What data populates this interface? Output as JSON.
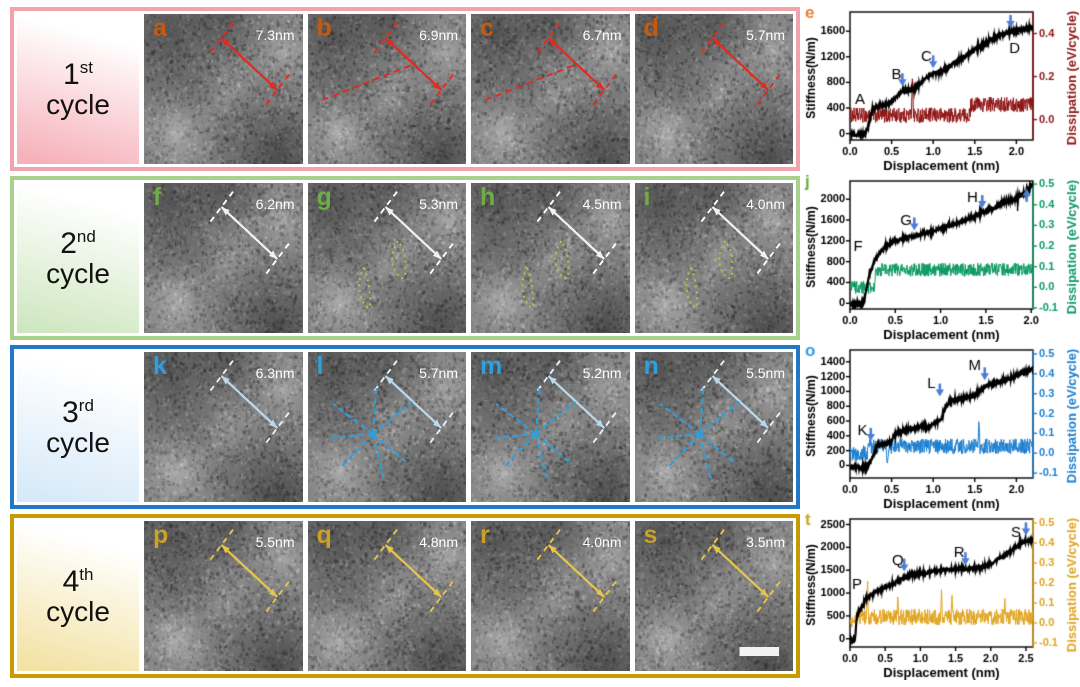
{
  "figure": {
    "rows": [
      {
        "ordinal": "1",
        "ordinal_suffix": "st",
        "label_word": "cycle",
        "border_color": "#f0a3aa",
        "label_bg": [
          "#ffffff",
          "#f6b1ba"
        ],
        "letter_color": "#c55a11",
        "arrow_color": "#e02b20",
        "dash_color": "#e02b20",
        "accent_color": "#e02b20",
        "measure_text_color": "#ffffff",
        "extra": "long-dash",
        "panels": [
          {
            "letter": "a",
            "measurement": "7.3nm"
          },
          {
            "letter": "b",
            "measurement": "6.9nm"
          },
          {
            "letter": "c",
            "measurement": "6.7nm"
          },
          {
            "letter": "d",
            "measurement": "5.7nm"
          }
        ]
      },
      {
        "ordinal": "2",
        "ordinal_suffix": "nd",
        "label_word": "cycle",
        "border_color": "#a9d18e",
        "label_bg": [
          "#ffffff",
          "#cfe7c0"
        ],
        "letter_color": "#70ad47",
        "arrow_color": "#f2f2f2",
        "dash_color": "#ffffff",
        "accent_color": "#a9c93f",
        "measure_text_color": "#ffffff",
        "extra": "green-dots",
        "panels": [
          {
            "letter": "f",
            "measurement": "6.2nm"
          },
          {
            "letter": "g",
            "measurement": "5.3nm"
          },
          {
            "letter": "h",
            "measurement": "4.5nm"
          },
          {
            "letter": "i",
            "measurement": "4.0nm"
          }
        ]
      },
      {
        "ordinal": "3",
        "ordinal_suffix": "rd",
        "label_word": "cycle",
        "border_color": "#2277c8",
        "label_bg": [
          "#ffffff",
          "#d6e9f8"
        ],
        "letter_color": "#2da0dd",
        "arrow_color": "#bcd9ec",
        "dash_color": "#e8f2f8",
        "accent_color": "#2da0dd",
        "measure_text_color": "#ffffff",
        "extra": "blue-rays",
        "panels": [
          {
            "letter": "k",
            "measurement": "6.3nm"
          },
          {
            "letter": "l",
            "measurement": "5.7nm"
          },
          {
            "letter": "m",
            "measurement": "5.2nm"
          },
          {
            "letter": "n",
            "measurement": "5.5nm"
          }
        ]
      },
      {
        "ordinal": "4",
        "ordinal_suffix": "th",
        "label_word": "cycle",
        "border_color": "#c79a02",
        "label_bg": [
          "#ffffff",
          "#f3e2a4"
        ],
        "letter_color": "#c9a227",
        "arrow_color": "#e6c54a",
        "dash_color": "#e6c54a",
        "accent_color": "#e6c54a",
        "measure_text_color": "#ffffff",
        "extra": "scalebar",
        "panels": [
          {
            "letter": "p",
            "measurement": "5.5nm"
          },
          {
            "letter": "q",
            "measurement": "4.8nm"
          },
          {
            "letter": "r",
            "measurement": "4.0nm"
          },
          {
            "letter": "s",
            "measurement": "3.5nm"
          }
        ]
      }
    ]
  },
  "chart_data": [
    {
      "id": "e",
      "letter": "e",
      "letter_color": "#ed7d31",
      "type": "line",
      "xlabel": "Displacement (nm)",
      "ylabel_left": "Stiffness(N/m)",
      "ylabel_right": "Dissipation (eV/cycle)",
      "x_ticks": [
        "0.0",
        "0.5",
        "1.0",
        "1.5",
        "2.0"
      ],
      "xlim": [
        0,
        2.2
      ],
      "left_ticks": [
        0,
        400,
        800,
        1200,
        1600
      ],
      "left_lim": [
        -100,
        1900
      ],
      "right_ticks": [
        "0.0",
        "0.2",
        "0.4"
      ],
      "right_lim": [
        -0.095,
        0.5
      ],
      "right_color": "#8f1414",
      "stiffness_color": "#000000",
      "annotation_arrow_color": "#4d7fd6",
      "stiffness": [
        [
          0,
          -10
        ],
        [
          0.18,
          -10
        ],
        [
          0.22,
          120
        ],
        [
          0.27,
          390
        ],
        [
          0.35,
          440
        ],
        [
          0.45,
          460
        ],
        [
          0.5,
          505
        ],
        [
          0.55,
          565
        ],
        [
          0.6,
          645
        ],
        [
          0.68,
          690
        ],
        [
          0.78,
          700
        ],
        [
          0.85,
          790
        ],
        [
          0.95,
          905
        ],
        [
          1.05,
          960
        ],
        [
          1.15,
          1005
        ],
        [
          1.25,
          1105
        ],
        [
          1.35,
          1185
        ],
        [
          1.45,
          1265
        ],
        [
          1.55,
          1355
        ],
        [
          1.65,
          1425
        ],
        [
          1.75,
          1505
        ],
        [
          1.85,
          1565
        ],
        [
          1.95,
          1595
        ],
        [
          2.05,
          1625
        ],
        [
          2.2,
          1665
        ]
      ],
      "dissipation_segments": [
        [
          0,
          1.45,
          0.02
        ],
        [
          1.45,
          2.2,
          0.07
        ]
      ],
      "dissipation_noise": 0.035,
      "dissipation_spikes": [
        [
          0.75,
          0.19
        ]
      ],
      "annotations": [
        {
          "label": "A",
          "x": 0.12,
          "y": 520
        },
        {
          "label": "B",
          "x": 0.56,
          "y": 920,
          "arrow": {
            "x": 0.63,
            "y": 740,
            "dir": "down"
          }
        },
        {
          "label": "C",
          "x": 0.92,
          "y": 1200,
          "arrow": {
            "x": 1.0,
            "y": 1020,
            "dir": "down"
          }
        },
        {
          "label": "D",
          "x": 1.98,
          "y": 1320,
          "arrow": {
            "x": 1.93,
            "y": 1650,
            "dir": "down"
          }
        }
      ]
    },
    {
      "id": "j",
      "letter": "j",
      "letter_color": "#70ad47",
      "type": "line",
      "xlabel": "Displacement (nm)",
      "ylabel_left": "Stiffness(N/m)",
      "ylabel_right": "Dissipation (eV/cycle)",
      "x_ticks": [
        "0.0",
        "0.5",
        "1.0",
        "1.5",
        "2.0"
      ],
      "xlim": [
        0,
        2.02
      ],
      "left_ticks": [
        0,
        400,
        800,
        1200,
        1600,
        2000
      ],
      "left_lim": [
        -110,
        2350
      ],
      "right_ticks": [
        "-0.1",
        "0.0",
        "0.1",
        "0.2",
        "0.3",
        "0.4",
        "0.5"
      ],
      "right_lim": [
        -0.105,
        0.515
      ],
      "right_color": "#0d9b63",
      "stiffness_color": "#000000",
      "annotation_arrow_color": "#4d7fd6",
      "stiffness": [
        [
          0,
          -15
        ],
        [
          0.13,
          -15
        ],
        [
          0.16,
          50
        ],
        [
          0.19,
          350
        ],
        [
          0.22,
          600
        ],
        [
          0.27,
          800
        ],
        [
          0.32,
          950
        ],
        [
          0.38,
          1080
        ],
        [
          0.45,
          1160
        ],
        [
          0.52,
          1215
        ],
        [
          0.62,
          1260
        ],
        [
          0.72,
          1300
        ],
        [
          0.82,
          1335
        ],
        [
          0.92,
          1390
        ],
        [
          1.02,
          1450
        ],
        [
          1.12,
          1505
        ],
        [
          1.22,
          1565
        ],
        [
          1.32,
          1625
        ],
        [
          1.42,
          1705
        ],
        [
          1.52,
          1785
        ],
        [
          1.62,
          1855
        ],
        [
          1.72,
          1950
        ],
        [
          1.82,
          2010
        ],
        [
          1.92,
          2110
        ],
        [
          2.02,
          2290
        ]
      ],
      "dissipation_segments": [
        [
          0,
          0.28,
          0.0
        ],
        [
          0.28,
          2.02,
          0.085
        ]
      ],
      "dissipation_noise": 0.032,
      "dissipation_spikes": [],
      "annotations": [
        {
          "label": "F",
          "x": 0.09,
          "y": 1080
        },
        {
          "label": "G",
          "x": 0.62,
          "y": 1580,
          "arrow": {
            "x": 0.71,
            "y": 1400,
            "dir": "down"
          }
        },
        {
          "label": "H",
          "x": 1.35,
          "y": 2020,
          "arrow": {
            "x": 1.46,
            "y": 1830,
            "dir": "down"
          }
        },
        {
          "label": "I",
          "x": 1.85,
          "y": 1860,
          "arrow": {
            "x": 1.95,
            "y": 2200,
            "dir": "up"
          }
        }
      ]
    },
    {
      "id": "o",
      "letter": "o",
      "letter_color": "#2da0dd",
      "type": "line",
      "xlabel": "Displacement (nm)",
      "ylabel_left": "Stiffness(N/m)",
      "ylabel_right": "Dissipation (eV/cycle)",
      "x_ticks": [
        "0.0",
        "0.5",
        "1.0",
        "1.5",
        "2.0"
      ],
      "xlim": [
        0,
        2.2
      ],
      "left_ticks": [
        0,
        200,
        400,
        600,
        800,
        1000,
        1200,
        1400
      ],
      "left_lim": [
        -170,
        1560
      ],
      "right_ticks": [
        "-0.1",
        "0.0",
        "0.1",
        "0.2",
        "0.3",
        "0.4",
        "0.5"
      ],
      "right_lim": [
        -0.125,
        0.52
      ],
      "right_color": "#1d7fd0",
      "stiffness_color": "#000000",
      "annotation_arrow_color": "#4d7fd6",
      "stiffness": [
        [
          0,
          -25
        ],
        [
          0.2,
          -25
        ],
        [
          0.24,
          30
        ],
        [
          0.28,
          140
        ],
        [
          0.33,
          270
        ],
        [
          0.4,
          295
        ],
        [
          0.48,
          305
        ],
        [
          0.53,
          390
        ],
        [
          0.58,
          450
        ],
        [
          0.68,
          475
        ],
        [
          0.78,
          500
        ],
        [
          0.88,
          530
        ],
        [
          0.93,
          515
        ],
        [
          0.98,
          545
        ],
        [
          1.05,
          590
        ],
        [
          1.1,
          640
        ],
        [
          1.15,
          790
        ],
        [
          1.22,
          880
        ],
        [
          1.32,
          900
        ],
        [
          1.42,
          925
        ],
        [
          1.5,
          950
        ],
        [
          1.56,
          1010
        ],
        [
          1.62,
          1060
        ],
        [
          1.68,
          1095
        ],
        [
          1.78,
          1125
        ],
        [
          1.88,
          1155
        ],
        [
          1.98,
          1205
        ],
        [
          2.08,
          1255
        ],
        [
          2.2,
          1305
        ]
      ],
      "dissipation_segments": [
        [
          0,
          0.22,
          0.0
        ],
        [
          0.22,
          2.2,
          0.035
        ]
      ],
      "dissipation_noise": 0.038,
      "dissipation_spikes": [
        [
          0.45,
          -0.07
        ],
        [
          1.55,
          0.16
        ]
      ],
      "annotations": [
        {
          "label": "K",
          "x": 0.15,
          "y": 470,
          "arrow": {
            "x": 0.25,
            "y": 330,
            "dir": "down"
          }
        },
        {
          "label": "L",
          "x": 0.98,
          "y": 1100,
          "arrow": {
            "x": 1.08,
            "y": 930,
            "dir": "down"
          }
        },
        {
          "label": "M",
          "x": 1.5,
          "y": 1340,
          "arrow": {
            "x": 1.62,
            "y": 1150,
            "dir": "down"
          }
        }
      ]
    },
    {
      "id": "t",
      "letter": "t",
      "letter_color": "#c9a227",
      "type": "line",
      "xlabel": "Displacement (nm)",
      "ylabel_left": "Stiffness(N/m)",
      "ylabel_right": "Dissipation (eV/cycle)",
      "x_ticks": [
        "0.0",
        "0.5",
        "1.0",
        "1.5",
        "2.0",
        "2.5"
      ],
      "xlim": [
        0,
        2.6
      ],
      "left_ticks": [
        0,
        500,
        1000,
        1500,
        2000,
        2500
      ],
      "left_lim": [
        -180,
        2620
      ],
      "right_ticks": [
        "-0.1",
        "0.0",
        "0.1",
        "0.2",
        "0.3",
        "0.4",
        "0.5"
      ],
      "right_lim": [
        -0.12,
        0.52
      ],
      "right_color": "#e2a51f",
      "stiffness_color": "#000000",
      "annotation_arrow_color": "#4d7fd6",
      "stiffness": [
        [
          0,
          -30
        ],
        [
          0.07,
          -30
        ],
        [
          0.1,
          520
        ],
        [
          0.13,
          600
        ],
        [
          0.17,
          700
        ],
        [
          0.22,
          870
        ],
        [
          0.27,
          930
        ],
        [
          0.35,
          1010
        ],
        [
          0.45,
          1090
        ],
        [
          0.55,
          1160
        ],
        [
          0.65,
          1240
        ],
        [
          0.75,
          1330
        ],
        [
          0.85,
          1380
        ],
        [
          0.95,
          1415
        ],
        [
          1.05,
          1440
        ],
        [
          1.15,
          1465
        ],
        [
          1.25,
          1495
        ],
        [
          1.35,
          1505
        ],
        [
          1.45,
          1515
        ],
        [
          1.55,
          1525
        ],
        [
          1.65,
          1535
        ],
        [
          1.75,
          1545
        ],
        [
          1.85,
          1565
        ],
        [
          1.95,
          1605
        ],
        [
          2.05,
          1680
        ],
        [
          2.15,
          1790
        ],
        [
          2.25,
          1890
        ],
        [
          2.35,
          2000
        ],
        [
          2.45,
          2110
        ],
        [
          2.58,
          2180
        ]
      ],
      "dissipation_segments": [
        [
          0,
          0.08,
          0.0
        ],
        [
          0.08,
          2.6,
          0.03
        ]
      ],
      "dissipation_noise": 0.04,
      "dissipation_spikes": [
        [
          0.25,
          0.2
        ],
        [
          0.68,
          0.13
        ],
        [
          1.3,
          0.16
        ],
        [
          1.45,
          0.14
        ],
        [
          2.2,
          0.12
        ]
      ],
      "annotations": [
        {
          "label": "P",
          "x": 0.1,
          "y": 1170
        },
        {
          "label": "Q",
          "x": 0.68,
          "y": 1700,
          "arrow": {
            "x": 0.77,
            "y": 1470,
            "dir": "down"
          }
        },
        {
          "label": "R",
          "x": 1.55,
          "y": 1870,
          "arrow": {
            "x": 1.64,
            "y": 1610,
            "dir": "down"
          }
        },
        {
          "label": "S",
          "x": 2.36,
          "y": 2320,
          "arrow": {
            "x": 2.5,
            "y": 2260,
            "dir": "down"
          }
        }
      ]
    }
  ]
}
